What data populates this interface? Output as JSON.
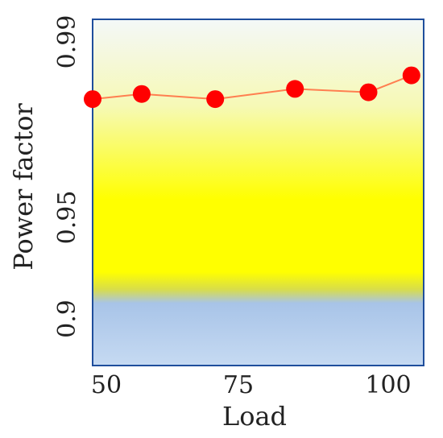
{
  "chart_data": {
    "type": "line",
    "xlabel": "Load",
    "ylabel": "Power factor",
    "xlim": [
      50,
      104
    ],
    "ylim": [
      0.888,
      0.99
    ],
    "x_ticks": [
      "50",
      "75",
      "100"
    ],
    "y_ticks": [
      "0.9",
      "0.95",
      "0.99"
    ],
    "series": [
      {
        "x": [
          50,
          58,
          70,
          83,
          95,
          102
        ],
        "values": [
          0.9665,
          0.968,
          0.9665,
          0.9695,
          0.9685,
          0.9735
        ],
        "color": "#ff0000",
        "line_color": "#ff7f50"
      }
    ],
    "background_bands": [
      {
        "from": 0.888,
        "to": 0.91,
        "color": "#a8c4e8"
      },
      {
        "from": 0.91,
        "to": 0.99,
        "color": "#ffff00"
      }
    ],
    "frame_color": "#1f4e9c"
  }
}
